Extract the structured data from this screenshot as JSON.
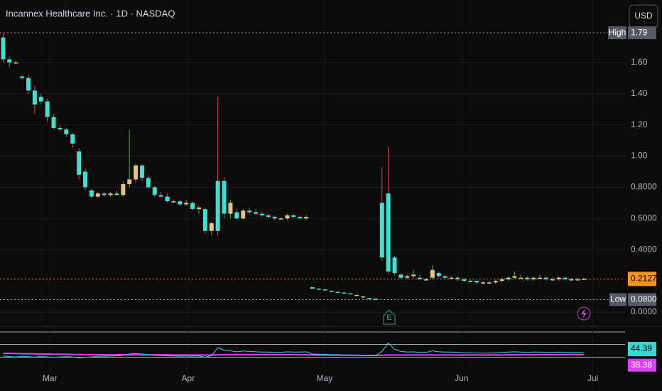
{
  "header": {
    "title": "Incannex Healthcare Inc. · 1D · NASDAQ",
    "currency_button": "USD"
  },
  "chart_data": {
    "type": "candlestick",
    "xlim": [
      -0.5,
      98.5
    ],
    "xticks": [
      {
        "value": 7.4,
        "label": "Mar"
      },
      {
        "value": 29.3,
        "label": "Apr"
      },
      {
        "value": 50.9,
        "label": "May"
      },
      {
        "value": 72.6,
        "label": "Jun"
      },
      {
        "value": 93.4,
        "label": "Jul"
      }
    ],
    "ylim": [
      -0.082,
      2.0
    ],
    "yticks": [
      {
        "value": 0,
        "label": "0.0000"
      },
      {
        "value": 0.4,
        "label": "0.4000"
      },
      {
        "value": 0.6,
        "label": "0.6000"
      },
      {
        "value": 0.8,
        "label": "0.8000"
      },
      {
        "value": 1.0,
        "label": "1.00"
      },
      {
        "value": 1.2,
        "label": "1.20"
      },
      {
        "value": 1.4,
        "label": "1.40"
      },
      {
        "value": 1.6,
        "label": "1.60"
      }
    ],
    "grid": true,
    "up_color": "#e8c07d",
    "down_color": "#3fe0d0",
    "up_wick_color": "#4caf50",
    "down_wick_color": "#e04848",
    "open": [
      1.76,
      1.62,
      1.6,
      1.51,
      1.5,
      1.42,
      1.38,
      1.35,
      1.25,
      1.18,
      1.17,
      1.14,
      1.03,
      0.9,
      0.78,
      0.74,
      0.76,
      0.75,
      0.76,
      0.75,
      0.82,
      0.85,
      0.94,
      0.86,
      0.8,
      0.75,
      0.74,
      0.71,
      0.71,
      0.69,
      0.7,
      0.66,
      0.66,
      0.52,
      0.84,
      0.84,
      0.63,
      0.64,
      0.6,
      0.65,
      0.64,
      0.63,
      0.62,
      0.61,
      0.6,
      0.6,
      0.62,
      0.61,
      0.6,
      0.16,
      0.15,
      0.145,
      0.135,
      0.13,
      0.125,
      0.12,
      0.11,
      0.1,
      0.09,
      0.085,
      0.7,
      0.76,
      0.35,
      0.24,
      0.22,
      0.23,
      0.22,
      0.21,
      0.22,
      0.25,
      0.23,
      0.22,
      0.22,
      0.21,
      0.2,
      0.2,
      0.19,
      0.19,
      0.19,
      0.2,
      0.21,
      0.22,
      0.22,
      0.22,
      0.21,
      0.22,
      0.22,
      0.21,
      0.21,
      0.22,
      0.21,
      0.21,
      0.21
    ],
    "high": [
      1.79,
      1.64,
      1.61,
      1.52,
      1.52,
      1.45,
      1.4,
      1.37,
      1.27,
      1.2,
      1.18,
      1.15,
      1.05,
      0.92,
      0.79,
      0.77,
      0.77,
      0.77,
      0.78,
      0.84,
      1.17,
      0.95,
      0.95,
      0.88,
      0.81,
      0.77,
      0.76,
      0.72,
      0.72,
      0.72,
      0.71,
      0.68,
      0.67,
      0.58,
      1.38,
      0.86,
      0.72,
      0.66,
      0.66,
      0.67,
      0.66,
      0.64,
      0.63,
      0.62,
      0.61,
      0.63,
      0.63,
      0.62,
      0.62,
      0.16,
      0.15,
      0.15,
      0.14,
      0.13,
      0.13,
      0.12,
      0.115,
      0.105,
      0.09,
      0.09,
      0.93,
      1.06,
      0.36,
      0.25,
      0.24,
      0.27,
      0.24,
      0.22,
      0.3,
      0.26,
      0.24,
      0.23,
      0.23,
      0.22,
      0.21,
      0.2,
      0.2,
      0.2,
      0.21,
      0.22,
      0.23,
      0.26,
      0.24,
      0.23,
      0.23,
      0.24,
      0.23,
      0.22,
      0.23,
      0.23,
      0.22,
      0.22,
      0.22
    ],
    "low": [
      1.6,
      1.57,
      1.59,
      1.49,
      1.4,
      1.27,
      1.33,
      1.22,
      1.17,
      1.16,
      1.12,
      1.05,
      0.85,
      0.78,
      0.73,
      0.73,
      0.74,
      0.74,
      0.75,
      0.74,
      0.8,
      0.83,
      0.84,
      0.79,
      0.74,
      0.73,
      0.7,
      0.7,
      0.68,
      0.68,
      0.65,
      0.63,
      0.5,
      0.49,
      0.49,
      0.6,
      0.6,
      0.59,
      0.59,
      0.63,
      0.62,
      0.61,
      0.6,
      0.59,
      0.59,
      0.59,
      0.6,
      0.6,
      0.59,
      0.15,
      0.14,
      0.14,
      0.13,
      0.125,
      0.12,
      0.115,
      0.105,
      0.095,
      0.08,
      0.08,
      0.33,
      0.24,
      0.24,
      0.21,
      0.21,
      0.22,
      0.21,
      0.2,
      0.21,
      0.22,
      0.21,
      0.21,
      0.2,
      0.19,
      0.19,
      0.18,
      0.18,
      0.18,
      0.18,
      0.19,
      0.2,
      0.21,
      0.21,
      0.2,
      0.2,
      0.21,
      0.2,
      0.2,
      0.2,
      0.2,
      0.2,
      0.2,
      0.21
    ],
    "close": [
      1.62,
      1.6,
      1.6,
      1.5,
      1.42,
      1.33,
      1.35,
      1.25,
      1.18,
      1.17,
      1.14,
      1.08,
      0.88,
      0.8,
      0.74,
      0.76,
      0.75,
      0.76,
      0.75,
      0.82,
      0.85,
      0.94,
      0.86,
      0.8,
      0.75,
      0.74,
      0.71,
      0.71,
      0.69,
      0.7,
      0.66,
      0.67,
      0.52,
      0.57,
      0.52,
      0.63,
      0.7,
      0.6,
      0.65,
      0.64,
      0.63,
      0.62,
      0.61,
      0.6,
      0.6,
      0.62,
      0.61,
      0.6,
      0.61,
      0.15,
      0.145,
      0.14,
      0.13,
      0.125,
      0.12,
      0.115,
      0.11,
      0.1,
      0.085,
      0.08,
      0.35,
      0.26,
      0.25,
      0.22,
      0.23,
      0.24,
      0.21,
      0.21,
      0.27,
      0.23,
      0.22,
      0.22,
      0.21,
      0.2,
      0.2,
      0.19,
      0.19,
      0.19,
      0.2,
      0.21,
      0.22,
      0.23,
      0.22,
      0.21,
      0.22,
      0.22,
      0.21,
      0.21,
      0.22,
      0.21,
      0.21,
      0.21,
      0.2127
    ],
    "high_line": {
      "name": "High",
      "value": 1.79
    },
    "low_line": {
      "name": "Low",
      "value": 0.08,
      "label": "0.0800"
    },
    "last_price": 0.2127,
    "last_color": "#f7931a",
    "markers": {
      "earnings": "E"
    },
    "rsi": {
      "ylim": [
        0,
        100
      ],
      "levels": [
        70,
        30
      ],
      "color": "#3ad6d6",
      "ma_color": "#e040fb",
      "values": [
        34,
        32,
        31,
        33,
        32,
        30,
        33,
        31,
        30,
        31,
        32,
        31,
        28,
        30,
        31,
        33,
        33,
        34,
        34,
        36,
        40,
        42,
        40,
        38,
        36,
        35,
        34,
        34,
        33,
        34,
        33,
        34,
        30,
        35,
        60,
        52,
        50,
        47,
        49,
        48,
        47,
        46,
        46,
        45,
        45,
        47,
        46,
        46,
        47,
        40,
        39,
        39,
        38,
        38,
        37,
        37,
        36,
        36,
        35,
        35,
        48,
        75,
        55,
        48,
        46,
        47,
        45,
        45,
        50,
        47,
        46,
        46,
        45,
        44,
        44,
        43,
        43,
        43,
        44,
        45,
        46,
        47,
        46,
        45,
        46,
        46,
        45,
        45,
        46,
        45,
        45,
        45,
        44.39
      ],
      "ma": [
        42,
        42,
        41.5,
        41,
        41,
        40.5,
        40,
        40,
        39.5,
        39,
        39,
        38.5,
        38.5,
        38,
        38,
        38,
        37.5,
        37.5,
        37.5,
        37.5,
        37.5,
        37.5,
        37.5,
        37.5,
        37.5,
        37.5,
        37.5,
        37,
        37,
        37,
        37,
        37,
        37,
        37,
        37.5,
        38,
        38,
        38,
        38,
        38,
        38,
        38,
        38,
        38,
        38,
        38,
        38,
        37.5,
        37.5,
        37,
        37,
        37,
        36.5,
        36.5,
        36,
        36,
        36,
        35.5,
        35.5,
        35.5,
        36,
        37,
        37,
        37,
        37,
        37,
        37,
        37,
        37,
        37,
        37,
        37,
        37,
        37,
        37,
        37,
        37,
        37,
        37,
        37,
        37.5,
        37.5,
        37.5,
        37.5,
        37.5,
        38,
        38,
        38,
        38,
        38,
        38.2,
        38.3,
        38.38
      ]
    }
  }
}
